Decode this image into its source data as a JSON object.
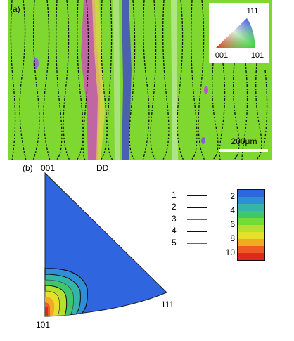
{
  "panel_a": {
    "label": "(a)",
    "scale_bar": "200μm",
    "direction_label": "DD",
    "colors": {
      "background": "#7fd830",
      "boundary": "#111111",
      "accent_magenta": "#d04ac0",
      "accent_yellow": "#e8d84a",
      "accent_blue": "#3a3ad8"
    },
    "inset_key": {
      "top": "111",
      "left": "001",
      "right": "101"
    }
  },
  "panel_b": {
    "label": "(b)",
    "corner_labels": {
      "top": "001",
      "bottom_left": "101",
      "bottom_right": "111"
    },
    "legend_lines": [
      "1",
      "2",
      "3",
      "4",
      "5"
    ],
    "colorbar": {
      "ticks": [
        "2",
        "4",
        "6",
        "8",
        "10"
      ],
      "colors": [
        "#2f66e0",
        "#2f8fd6",
        "#35b5a8",
        "#3ec86b",
        "#76d93b",
        "#b6e030",
        "#e6e02a",
        "#f3a826",
        "#ee5a22",
        "#dd2a1a"
      ]
    },
    "pole_figure_color": "#2f66e0"
  }
}
